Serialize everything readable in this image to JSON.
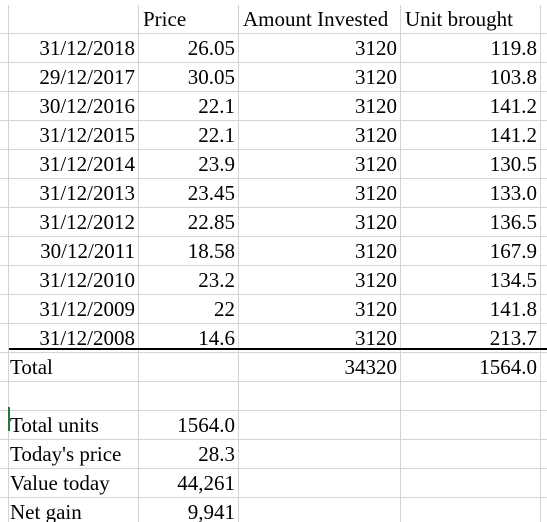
{
  "headers": {
    "price": "Price",
    "amount": "Amount Invested",
    "units": "Unit brought"
  },
  "rows": [
    {
      "date": "31/12/2018",
      "price": "26.05",
      "amount": "3120",
      "units": "119.8"
    },
    {
      "date": "29/12/2017",
      "price": "30.05",
      "amount": "3120",
      "units": "103.8"
    },
    {
      "date": "30/12/2016",
      "price": "22.1",
      "amount": "3120",
      "units": "141.2"
    },
    {
      "date": "31/12/2015",
      "price": "22.1",
      "amount": "3120",
      "units": "141.2"
    },
    {
      "date": "31/12/2014",
      "price": "23.9",
      "amount": "3120",
      "units": "130.5"
    },
    {
      "date": "31/12/2013",
      "price": "23.45",
      "amount": "3120",
      "units": "133.0"
    },
    {
      "date": "31/12/2012",
      "price": "22.85",
      "amount": "3120",
      "units": "136.5"
    },
    {
      "date": "30/12/2011",
      "price": "18.58",
      "amount": "3120",
      "units": "167.9"
    },
    {
      "date": "31/12/2010",
      "price": "23.2",
      "amount": "3120",
      "units": "134.5"
    },
    {
      "date": "31/12/2009",
      "price": "22",
      "amount": "3120",
      "units": "141.8"
    },
    {
      "date": "31/12/2008",
      "price": "14.6",
      "amount": "3120",
      "units": "213.7"
    }
  ],
  "total": {
    "label": "Total",
    "amount": "34320",
    "units": "1564.0"
  },
  "summary": [
    {
      "label": "Total units",
      "value": "1564.0"
    },
    {
      "label": "Today's price",
      "value": "28.3"
    },
    {
      "label": "Value today",
      "value": "44,261"
    },
    {
      "label": "Net gain",
      "value": "9,941"
    }
  ]
}
